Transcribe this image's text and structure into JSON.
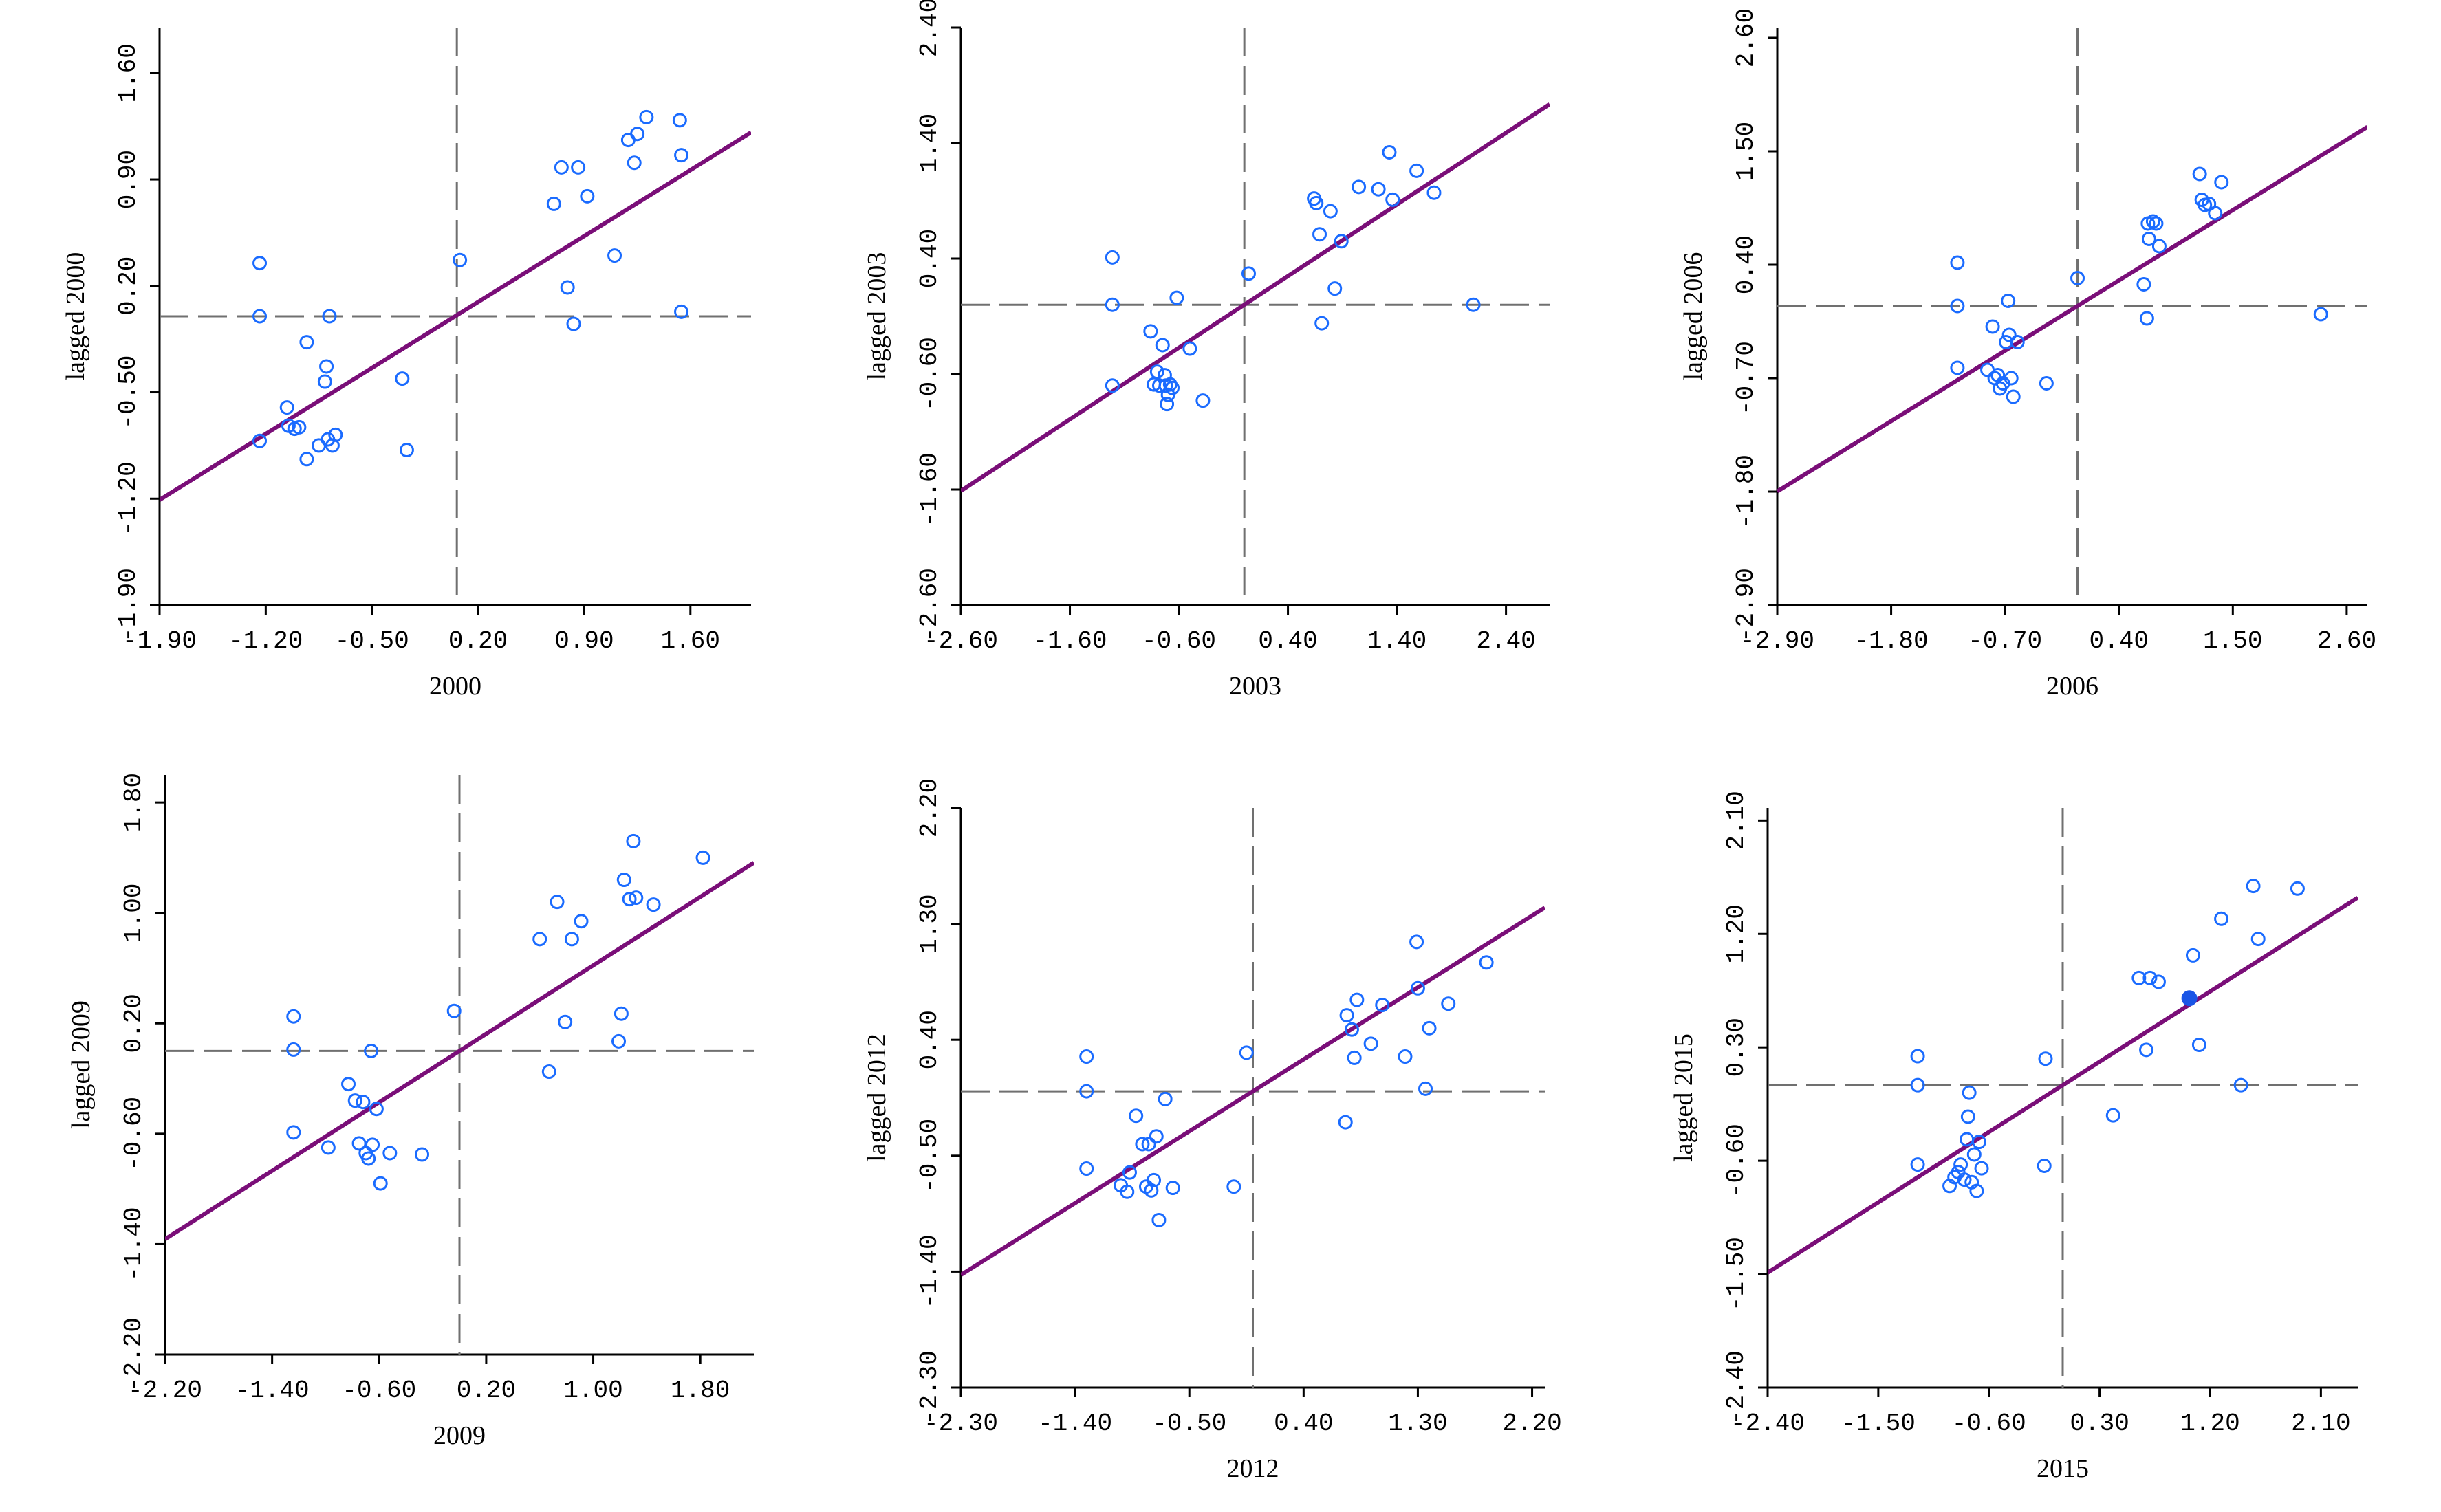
{
  "chart_data": [
    {
      "type": "scatter",
      "xlabel": "2000",
      "ylabel": "lagged 2000",
      "xlim": [
        -1.9,
        2.0
      ],
      "ylim": [
        -1.9,
        1.9
      ],
      "x_ticks": [
        "-1.90",
        "-1.20",
        "-0.50",
        "0.20",
        "0.90",
        "1.60"
      ],
      "y_ticks": [
        "-1.90",
        "-1.20",
        "-0.50",
        "0.20",
        "0.90",
        "1.60"
      ],
      "ref_x": 0.06,
      "ref_y": 0.0,
      "fit": {
        "slope": 0.62,
        "intercept": -0.03
      },
      "points": [
        [
          -1.24,
          0.35
        ],
        [
          -1.24,
          0.0
        ],
        [
          -1.24,
          -0.82
        ],
        [
          -1.06,
          -0.6
        ],
        [
          -1.05,
          -0.72
        ],
        [
          -1.01,
          -0.74
        ],
        [
          -0.98,
          -0.73
        ],
        [
          -0.93,
          -0.94
        ],
        [
          -0.93,
          -0.17
        ],
        [
          -0.85,
          -0.85
        ],
        [
          -0.81,
          -0.43
        ],
        [
          -0.8,
          -0.33
        ],
        [
          -0.79,
          -0.81
        ],
        [
          -0.78,
          0.0
        ],
        [
          -0.76,
          -0.85
        ],
        [
          -0.74,
          -0.78
        ],
        [
          -0.3,
          -0.41
        ],
        [
          -0.27,
          -0.88
        ],
        [
          0.08,
          0.37
        ],
        [
          0.7,
          0.74
        ],
        [
          0.75,
          0.98
        ],
        [
          0.79,
          0.19
        ],
        [
          0.83,
          -0.05
        ],
        [
          0.86,
          0.98
        ],
        [
          0.92,
          0.79
        ],
        [
          1.1,
          0.4
        ],
        [
          1.19,
          1.16
        ],
        [
          1.23,
          1.01
        ],
        [
          1.25,
          1.2
        ],
        [
          1.31,
          1.31
        ],
        [
          1.53,
          1.29
        ],
        [
          1.54,
          1.06
        ],
        [
          1.54,
          0.03
        ]
      ]
    },
    {
      "type": "scatter",
      "xlabel": "2003",
      "ylabel": "lagged 2003",
      "xlim": [
        -2.6,
        2.8
      ],
      "ylim": [
        -2.6,
        2.4
      ],
      "x_ticks": [
        "-2.60",
        "-1.60",
        "-0.60",
        "0.40",
        "1.40",
        "2.40"
      ],
      "y_ticks": [
        "-2.60",
        "-1.60",
        "-0.60",
        "0.40",
        "1.40",
        "2.40"
      ],
      "ref_x": 0.0,
      "ref_y": 0.0,
      "fit": {
        "slope": 0.62,
        "intercept": 0.0
      },
      "points": [
        [
          -1.21,
          0.41
        ],
        [
          -1.21,
          0.0
        ],
        [
          -1.21,
          -0.7
        ],
        [
          -0.86,
          -0.23
        ],
        [
          -0.83,
          -0.69
        ],
        [
          -0.8,
          -0.58
        ],
        [
          -0.78,
          -0.7
        ],
        [
          -0.75,
          -0.35
        ],
        [
          -0.73,
          -0.61
        ],
        [
          -0.72,
          -0.7
        ],
        [
          -0.71,
          -0.86
        ],
        [
          -0.7,
          -0.78
        ],
        [
          -0.68,
          -0.69
        ],
        [
          -0.66,
          -0.72
        ],
        [
          -0.62,
          0.06
        ],
        [
          -0.5,
          -0.38
        ],
        [
          -0.38,
          -0.83
        ],
        [
          0.04,
          0.27
        ],
        [
          0.64,
          0.92
        ],
        [
          0.66,
          0.88
        ],
        [
          0.69,
          0.61
        ],
        [
          0.71,
          -0.16
        ],
        [
          0.79,
          0.81
        ],
        [
          0.83,
          0.14
        ],
        [
          0.89,
          0.55
        ],
        [
          1.05,
          1.02
        ],
        [
          1.23,
          1.0
        ],
        [
          1.33,
          1.32
        ],
        [
          1.36,
          0.91
        ],
        [
          1.58,
          1.16
        ],
        [
          1.74,
          0.97
        ],
        [
          2.1,
          0.0
        ]
      ]
    },
    {
      "type": "scatter",
      "xlabel": "2006",
      "ylabel": "lagged 2006",
      "xlim": [
        -2.9,
        2.8
      ],
      "ylim": [
        -2.9,
        2.7
      ],
      "x_ticks": [
        "-2.90",
        "-1.80",
        "-0.70",
        "0.40",
        "1.50",
        "2.60"
      ],
      "y_ticks": [
        "-2.90",
        "-1.80",
        "-0.70",
        "0.40",
        "1.50",
        "2.60"
      ],
      "ref_x": 0.0,
      "ref_y": 0.0,
      "fit": {
        "slope": 0.62,
        "intercept": 0.0
      },
      "points": [
        [
          -1.16,
          0.42
        ],
        [
          -1.16,
          0.0
        ],
        [
          -1.16,
          -0.6
        ],
        [
          -0.87,
          -0.62
        ],
        [
          -0.82,
          -0.2
        ],
        [
          -0.8,
          -0.7
        ],
        [
          -0.77,
          -0.67
        ],
        [
          -0.75,
          -0.8
        ],
        [
          -0.72,
          -0.75
        ],
        [
          -0.69,
          -0.35
        ],
        [
          -0.67,
          0.05
        ],
        [
          -0.66,
          -0.28
        ],
        [
          -0.64,
          -0.7
        ],
        [
          -0.62,
          -0.88
        ],
        [
          -0.58,
          -0.35
        ],
        [
          -0.3,
          -0.75
        ],
        [
          0.0,
          0.27
        ],
        [
          0.64,
          0.21
        ],
        [
          0.67,
          -0.12
        ],
        [
          0.68,
          0.8
        ],
        [
          0.69,
          0.65
        ],
        [
          0.73,
          0.82
        ],
        [
          0.76,
          0.8
        ],
        [
          0.79,
          0.58
        ],
        [
          1.18,
          1.28
        ],
        [
          1.2,
          1.03
        ],
        [
          1.23,
          0.98
        ],
        [
          1.27,
          0.99
        ],
        [
          1.33,
          0.9
        ],
        [
          1.39,
          1.2
        ],
        [
          2.35,
          -0.08
        ]
      ]
    },
    {
      "type": "scatter",
      "xlabel": "2009",
      "ylabel": "lagged 2009",
      "xlim": [
        -2.2,
        2.2
      ],
      "ylim": [
        -2.2,
        2.0
      ],
      "x_ticks": [
        "-2.20",
        "-1.40",
        "-0.60",
        "0.20",
        "1.00",
        "1.80"
      ],
      "y_ticks": [
        "-2.20",
        "-1.40",
        "-0.60",
        "0.20",
        "1.00",
        "1.80"
      ],
      "ref_x": 0.0,
      "ref_y": 0.0,
      "fit": {
        "slope": 0.62,
        "intercept": 0.0
      },
      "points": [
        [
          -1.24,
          0.25
        ],
        [
          -1.24,
          0.01
        ],
        [
          -1.24,
          -0.59
        ],
        [
          -0.98,
          -0.7
        ],
        [
          -0.83,
          -0.24
        ],
        [
          -0.78,
          -0.36
        ],
        [
          -0.75,
          -0.67
        ],
        [
          -0.72,
          -0.37
        ],
        [
          -0.7,
          -0.74
        ],
        [
          -0.68,
          -0.78
        ],
        [
          -0.66,
          0.0
        ],
        [
          -0.65,
          -0.68
        ],
        [
          -0.62,
          -0.42
        ],
        [
          -0.59,
          -0.96
        ],
        [
          -0.52,
          -0.74
        ],
        [
          -0.28,
          -0.75
        ],
        [
          -0.04,
          0.29
        ],
        [
          0.6,
          0.81
        ],
        [
          0.67,
          -0.15
        ],
        [
          0.73,
          1.08
        ],
        [
          0.79,
          0.21
        ],
        [
          0.84,
          0.81
        ],
        [
          0.91,
          0.94
        ],
        [
          1.19,
          0.07
        ],
        [
          1.21,
          0.27
        ],
        [
          1.23,
          1.24
        ],
        [
          1.27,
          1.1
        ],
        [
          1.3,
          1.52
        ],
        [
          1.32,
          1.11
        ],
        [
          1.45,
          1.06
        ],
        [
          1.82,
          1.4
        ]
      ]
    },
    {
      "type": "scatter",
      "xlabel": "2012",
      "ylabel": "lagged 2012",
      "xlim": [
        -2.3,
        2.3
      ],
      "ylim": [
        -2.3,
        2.2
      ],
      "x_ticks": [
        "-2.30",
        "-1.40",
        "-0.50",
        "0.40",
        "1.30",
        "2.20"
      ],
      "y_ticks": [
        "-2.30",
        "-1.40",
        "-0.50",
        "0.40",
        "1.30",
        "2.20"
      ],
      "ref_x": 0.0,
      "ref_y": 0.0,
      "fit": {
        "slope": 0.62,
        "intercept": 0.0
      },
      "points": [
        [
          -1.31,
          0.27
        ],
        [
          -1.31,
          0.0
        ],
        [
          -1.31,
          -0.6
        ],
        [
          -1.04,
          -0.73
        ],
        [
          -0.99,
          -0.78
        ],
        [
          -0.97,
          -0.63
        ],
        [
          -0.92,
          -0.19
        ],
        [
          -0.87,
          -0.41
        ],
        [
          -0.84,
          -0.74
        ],
        [
          -0.82,
          -0.41
        ],
        [
          -0.8,
          -0.77
        ],
        [
          -0.78,
          -0.69
        ],
        [
          -0.76,
          -0.35
        ],
        [
          -0.74,
          -1.0
        ],
        [
          -0.69,
          -0.06
        ],
        [
          -0.63,
          -0.75
        ],
        [
          -0.15,
          -0.74
        ],
        [
          -0.05,
          0.3
        ],
        [
          0.73,
          -0.24
        ],
        [
          0.74,
          0.59
        ],
        [
          0.78,
          0.48
        ],
        [
          0.8,
          0.26
        ],
        [
          0.82,
          0.71
        ],
        [
          0.93,
          0.37
        ],
        [
          1.02,
          0.67
        ],
        [
          1.2,
          0.27
        ],
        [
          1.29,
          1.16
        ],
        [
          1.3,
          0.8
        ],
        [
          1.36,
          0.02
        ],
        [
          1.39,
          0.49
        ],
        [
          1.54,
          0.68
        ],
        [
          1.84,
          1.0
        ]
      ]
    },
    {
      "type": "scatter",
      "xlabel": "2015",
      "ylabel": "lagged 2015",
      "xlim": [
        -2.4,
        2.4
      ],
      "ylim": [
        -2.4,
        2.2
      ],
      "x_ticks": [
        "-2.40",
        "-1.50",
        "-0.60",
        "0.30",
        "1.20",
        "2.10"
      ],
      "y_ticks": [
        "-2.40",
        "-1.50",
        "-0.60",
        "0.30",
        "1.20",
        "2.10"
      ],
      "ref_x": 0.0,
      "ref_y": 0.0,
      "fit": {
        "slope": 0.62,
        "intercept": 0.0
      },
      "points": [
        [
          -1.18,
          0.23
        ],
        [
          -1.18,
          0.0
        ],
        [
          -1.18,
          -0.63
        ],
        [
          -0.92,
          -0.8
        ],
        [
          -0.88,
          -0.73
        ],
        [
          -0.85,
          -0.69
        ],
        [
          -0.83,
          -0.63
        ],
        [
          -0.8,
          -0.75
        ],
        [
          -0.78,
          -0.43
        ],
        [
          -0.77,
          -0.25
        ],
        [
          -0.76,
          -0.06
        ],
        [
          -0.74,
          -0.77
        ],
        [
          -0.72,
          -0.55
        ],
        [
          -0.7,
          -0.84
        ],
        [
          -0.68,
          -0.45
        ],
        [
          -0.66,
          -0.66
        ],
        [
          -0.15,
          -0.64
        ],
        [
          -0.14,
          0.21
        ],
        [
          0.41,
          -0.24
        ],
        [
          0.62,
          0.85
        ],
        [
          0.68,
          0.28
        ],
        [
          0.71,
          0.85
        ],
        [
          0.78,
          0.82
        ],
        [
          1.03,
          0.69
        ],
        [
          1.06,
          1.03
        ],
        [
          1.11,
          0.32
        ],
        [
          1.29,
          1.32
        ],
        [
          1.45,
          0.0
        ],
        [
          1.55,
          1.58
        ],
        [
          1.59,
          1.16
        ],
        [
          1.91,
          1.56
        ]
      ],
      "highlighted_points": [
        [
          1.03,
          0.69
        ]
      ]
    }
  ]
}
